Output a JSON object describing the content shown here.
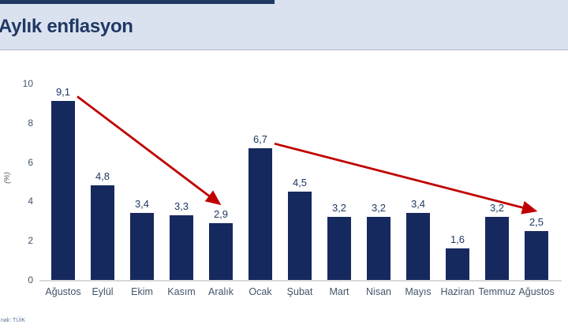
{
  "header": {
    "title": "Aylık enflasyon"
  },
  "source_note": "nak: TÜİK",
  "colors": {
    "header_bg": "#dbe2ef",
    "top_strip": "#1f3864",
    "title_text": "#1f3864",
    "bar": "#16295f",
    "data_label": "#1f3864",
    "axis_label": "#44546a",
    "axis_line": "#d9d9d9",
    "trend_arrow": "#c00000"
  },
  "chart_data": {
    "type": "bar",
    "title": "Aylık enflasyon",
    "categories": [
      "Ağustos",
      "Eylül",
      "Ekim",
      "Kasım",
      "Aralık",
      "Ocak",
      "Şubat",
      "Mart",
      "Nisan",
      "Mayıs",
      "Haziran",
      "Temmuz",
      "Ağustos"
    ],
    "values": [
      9.1,
      4.8,
      3.4,
      3.3,
      2.9,
      6.7,
      4.5,
      3.2,
      3.2,
      3.4,
      1.6,
      3.2,
      2.5
    ],
    "value_labels": [
      "9,1",
      "4,8",
      "3,4",
      "3,3",
      "2,9",
      "6,7",
      "4,5",
      "3,2",
      "3,2",
      "3,4",
      "1,6",
      "3,2",
      "2,5"
    ],
    "xlabel": "",
    "ylabel": "(%)",
    "ylim": [
      0,
      10
    ],
    "yticks": [
      0,
      2,
      4,
      6,
      8,
      10
    ],
    "grid": false,
    "legend": null,
    "annotations": [
      {
        "type": "arrow",
        "color": "#c00000",
        "from_category_index": 0,
        "to_category_index": 4,
        "meaning": "decline from 9,1 (Ağustos) to 2,9 (Aralık)"
      },
      {
        "type": "arrow",
        "color": "#c00000",
        "from_category_index": 5,
        "to_category_index": 12,
        "meaning": "decline from 6,7 (Ocak) to 2,5 (Ağustos)"
      }
    ]
  }
}
